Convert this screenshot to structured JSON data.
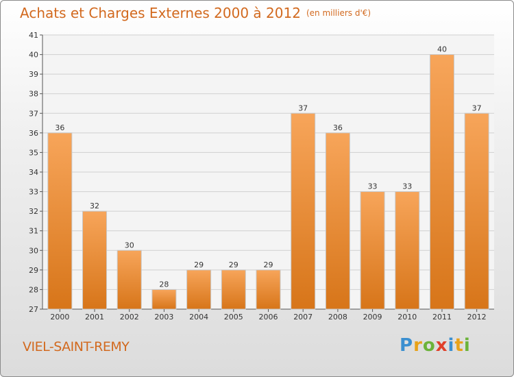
{
  "header": {
    "title": "Achats et Charges Externes 2000 à 2012",
    "unit": "(en milliers d'€)"
  },
  "footer": {
    "city": "VIEL-SAINT-REMY",
    "brand_letters": [
      {
        "ch": "P",
        "color": "#3a8fd0"
      },
      {
        "ch": "r",
        "color": "#e8a21a"
      },
      {
        "ch": "o",
        "color": "#6bb33a"
      },
      {
        "ch": "x",
        "color": "#e0402a"
      },
      {
        "ch": "i",
        "color": "#3a8fd0"
      },
      {
        "ch": "t",
        "color": "#e8a21a"
      },
      {
        "ch": "i",
        "color": "#6bb33a"
      }
    ]
  },
  "colors": {
    "bar_top": "#f7a55a",
    "bar_bottom": "#d77519",
    "accent_text": "#d2691e",
    "grid": "#cfcfcf"
  },
  "chart_data": {
    "type": "bar",
    "categories": [
      "2000",
      "2001",
      "2002",
      "2003",
      "2004",
      "2005",
      "2006",
      "2007",
      "2008",
      "2009",
      "2010",
      "2011",
      "2012"
    ],
    "values": [
      36,
      32,
      30,
      28,
      29,
      29,
      29,
      37,
      36,
      33,
      33,
      40,
      37
    ],
    "title": "Achats et Charges Externes 2000 à 2012",
    "ylim": [
      27,
      41
    ],
    "yticks": [
      27,
      28,
      29,
      30,
      31,
      32,
      33,
      34,
      35,
      36,
      37,
      38,
      39,
      40,
      41
    ],
    "grid": true
  }
}
